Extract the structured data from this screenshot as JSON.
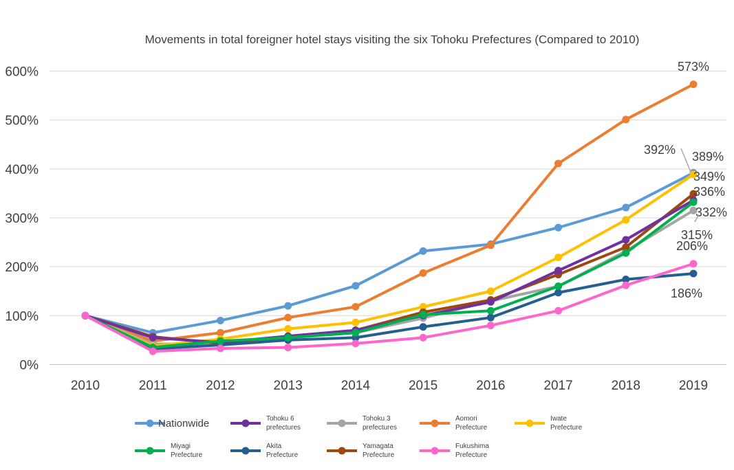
{
  "chart_data": {
    "type": "line",
    "title": "Movements in total foreigner hotel stays visiting the six Tohoku Prefectures (Compared to 2010)",
    "xlabel": "",
    "ylabel": "",
    "categories": [
      "2010",
      "2011",
      "2012",
      "2013",
      "2014",
      "2015",
      "2016",
      "2017",
      "2018",
      "2019"
    ],
    "ylim": [
      0,
      600
    ],
    "yticks": [
      "0%",
      "100%",
      "200%",
      "300%",
      "400%",
      "500%",
      "600%"
    ],
    "grid": "horizontal",
    "legend": "bottom",
    "series": [
      {
        "key": "nationwide",
        "name": "Nationwide",
        "color": "#5B9BD5",
        "values": [
          100,
          65,
          90,
          120,
          161,
          232,
          246,
          280,
          321,
          392
        ]
      },
      {
        "key": "tohoku6",
        "name": "Tohoku 6 prefectures",
        "color": "#7030A0",
        "values": [
          100,
          55,
          45,
          58,
          70,
          100,
          128,
          192,
          255,
          336
        ]
      },
      {
        "key": "tohoku3",
        "name": "Tohoku 3 prefectures",
        "color": "#A5A5A5",
        "values": [
          100,
          42,
          42,
          55,
          65,
          95,
          130,
          160,
          232,
          315
        ]
      },
      {
        "key": "aomori",
        "name": "Aomori Prefecture",
        "color": "#ED7D31",
        "values": [
          100,
          48,
          65,
          96,
          118,
          187,
          244,
          411,
          501,
          573
        ]
      },
      {
        "key": "iwate",
        "name": "Iwate Prefecture",
        "color": "#FFC000",
        "values": [
          100,
          38,
          52,
          73,
          86,
          118,
          150,
          219,
          296,
          389
        ]
      },
      {
        "key": "miyagi",
        "name": "Miyagi Prefecture",
        "color": "#00B050",
        "values": [
          100,
          35,
          48,
          55,
          65,
          102,
          110,
          160,
          228,
          332
        ]
      },
      {
        "key": "akita",
        "name": "Akita Prefecture",
        "color": "#255E91",
        "values": [
          100,
          32,
          40,
          50,
          55,
          77,
          96,
          147,
          174,
          186
        ]
      },
      {
        "key": "yamagata",
        "name": "Yamagata Prefecture",
        "color": "#9E480E",
        "values": [
          100,
          57,
          43,
          58,
          70,
          107,
          132,
          184,
          240,
          349
        ]
      },
      {
        "key": "fukushima",
        "name": "Fukushima Prefecture",
        "color": "#FF66CC",
        "values": [
          100,
          27,
          33,
          35,
          43,
          55,
          80,
          110,
          162,
          206
        ]
      }
    ],
    "annotations": {
      "aomori": "573%",
      "nationwide": "392%",
      "iwate": "389%",
      "yamagata": "349%",
      "tohoku6": "336%",
      "miyagi": "332%",
      "tohoku3": "315%",
      "fukushima": "206%",
      "akita": "186%"
    },
    "legend_items": [
      {
        "key": "nationwide",
        "lines": [
          "Nationwide"
        ]
      },
      {
        "key": "tohoku6",
        "lines": [
          "Tohoku 6",
          "prefectures"
        ]
      },
      {
        "key": "tohoku3",
        "lines": [
          "Tohoku 3",
          "prefectures"
        ]
      },
      {
        "key": "aomori",
        "lines": [
          "Aomori",
          "Prefecture"
        ]
      },
      {
        "key": "iwate",
        "lines": [
          "Iwate",
          "Prefecture"
        ]
      },
      {
        "key": "miyagi",
        "lines": [
          "Miyagi",
          "Prefecture"
        ]
      },
      {
        "key": "akita",
        "lines": [
          "Akita",
          "Prefecture"
        ]
      },
      {
        "key": "yamagata",
        "lines": [
          "Yamagata",
          "Prefecture"
        ]
      },
      {
        "key": "fukushima",
        "lines": [
          "Fukushima",
          "Prefecture"
        ]
      }
    ]
  }
}
